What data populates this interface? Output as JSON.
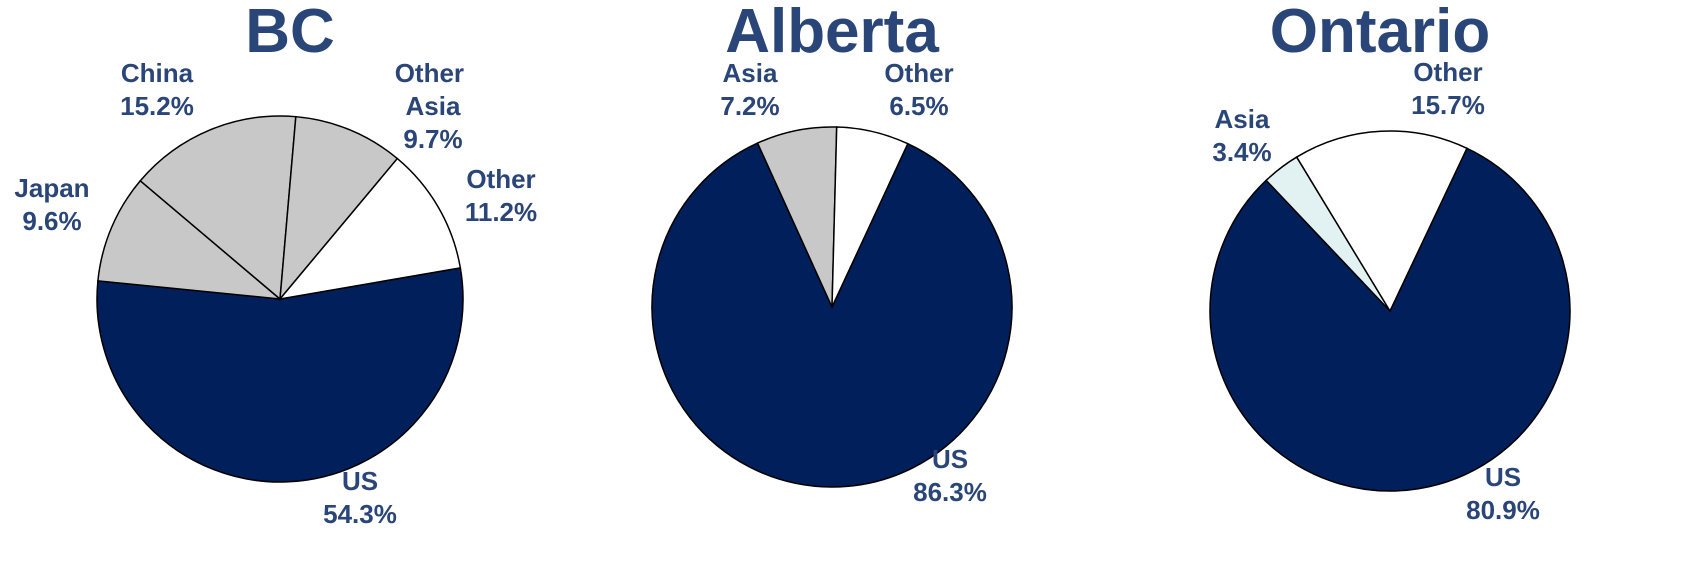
{
  "chart_data": [
    {
      "type": "pie",
      "title": "BC",
      "categories": [
        "US",
        "Japan",
        "China",
        "Other Asia",
        "Other"
      ],
      "values": [
        54.3,
        9.6,
        15.2,
        9.7,
        11.2
      ],
      "value_labels": [
        "54.3%",
        "9.6%",
        "15.2%",
        "9.7%",
        "11.2%"
      ],
      "colors": [
        "#001f5b",
        "#c8c8c8",
        "#c8c8c8",
        "#c8c8c8",
        "#ffffff"
      ]
    },
    {
      "type": "pie",
      "title": "Alberta",
      "categories": [
        "US",
        "Asia",
        "Other"
      ],
      "values": [
        86.3,
        7.2,
        6.5
      ],
      "value_labels": [
        "86.3%",
        "7.2%",
        "6.5%"
      ],
      "colors": [
        "#001f5b",
        "#c8c8c8",
        "#ffffff"
      ]
    },
    {
      "type": "pie",
      "title": "Ontario",
      "categories": [
        "US",
        "Asia",
        "Other"
      ],
      "values": [
        80.9,
        3.4,
        15.7
      ],
      "value_labels": [
        "80.9%",
        "3.4%",
        "15.7%"
      ],
      "colors": [
        "#001f5b",
        "#e2f2f2",
        "#ffffff"
      ]
    }
  ]
}
